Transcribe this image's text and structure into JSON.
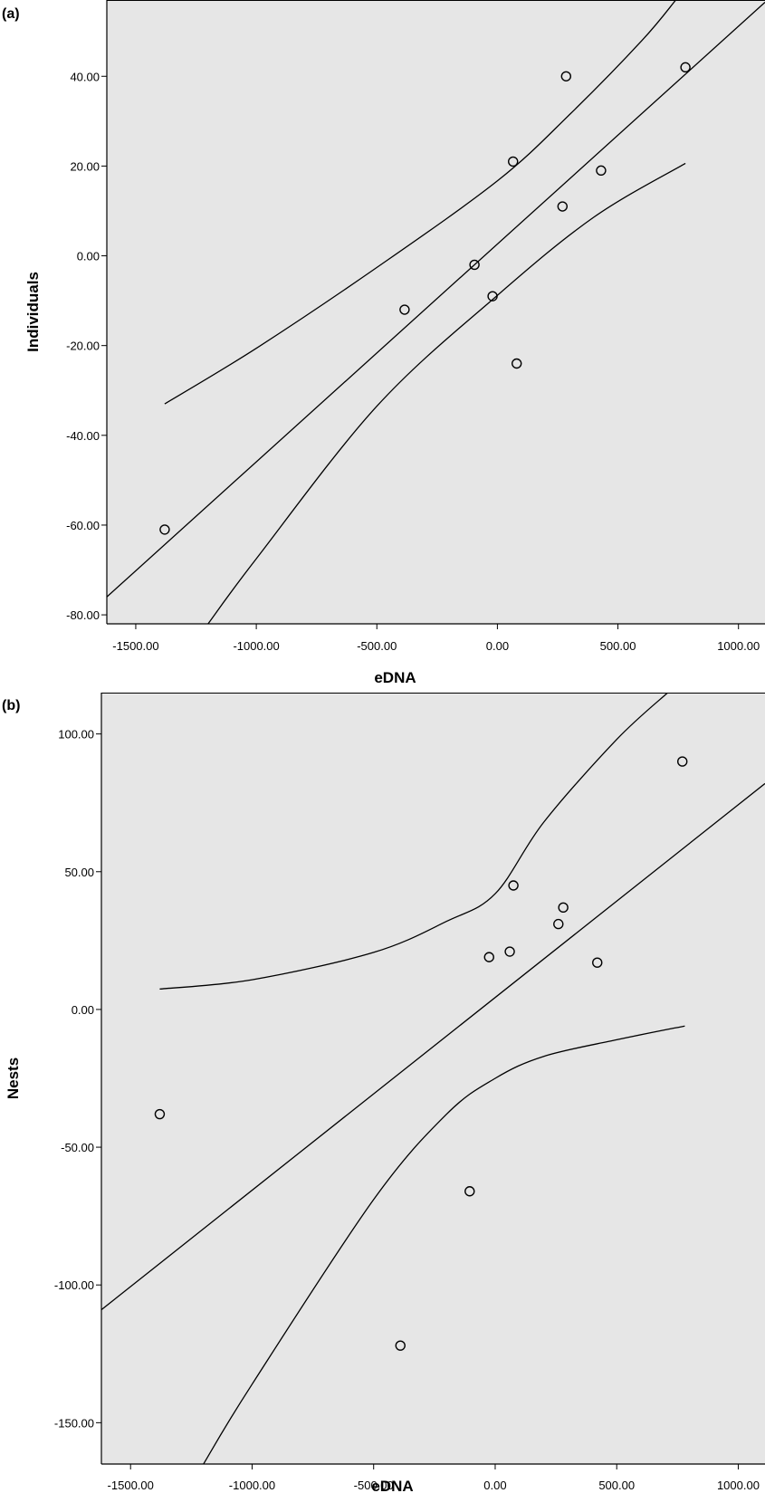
{
  "chart_data": [
    {
      "type": "scatter",
      "panel_label": "(a)",
      "xlabel": "eDNA",
      "ylabel": "Individuals",
      "xlim": [
        -1620,
        1110
      ],
      "ylim": [
        -82,
        57
      ],
      "xticks": [
        -1500,
        -1000,
        -500,
        0,
        500,
        1000
      ],
      "xtick_labels": [
        "-1500.00",
        "-1000.00",
        "-500.00",
        "0.00",
        "500.00",
        "1000.00"
      ],
      "yticks": [
        40,
        20,
        0,
        -20,
        -40,
        -60,
        -80
      ],
      "ytick_labels": [
        "40.00",
        "20.00",
        "0.00",
        "-20.00",
        "-40.00",
        "-60.00",
        "-80.00"
      ],
      "points": [
        {
          "x": -1380,
          "y": -61
        },
        {
          "x": -385,
          "y": -12
        },
        {
          "x": -95,
          "y": -2
        },
        {
          "x": -20,
          "y": -9
        },
        {
          "x": 65,
          "y": 21
        },
        {
          "x": 80,
          "y": -24
        },
        {
          "x": 270,
          "y": 11
        },
        {
          "x": 285,
          "y": 40
        },
        {
          "x": 430,
          "y": 19
        },
        {
          "x": 780,
          "y": 42
        }
      ],
      "fit_line": [
        [
          -1620,
          -76
        ],
        [
          1110,
          56.5
        ]
      ],
      "ci_upper": [
        [
          -1380,
          -33
        ],
        [
          -1000,
          -20.6
        ],
        [
          -500,
          -2.6
        ],
        [
          0,
          16.7
        ],
        [
          300,
          31.5
        ],
        [
          600,
          48
        ],
        [
          740,
          57
        ]
      ],
      "ci_lower": [
        [
          -1200,
          -82
        ],
        [
          -1000,
          -67.5
        ],
        [
          -500,
          -33.5
        ],
        [
          0,
          -8.8
        ],
        [
          400,
          8.6
        ],
        [
          780,
          20.6
        ]
      ],
      "grid": false
    },
    {
      "type": "scatter",
      "panel_label": "(b)",
      "xlabel": "eDNA",
      "ylabel": "Nests",
      "xlim": [
        -1620,
        1110
      ],
      "ylim": [
        -165,
        115
      ],
      "xticks": [
        -1500,
        -1000,
        -500,
        0,
        500,
        1000
      ],
      "xtick_labels": [
        "-1500.00",
        "-1000.00",
        "-500.00",
        "0.00",
        "500.00",
        "1000.00"
      ],
      "yticks": [
        100,
        50,
        0,
        -50,
        -100,
        -150
      ],
      "ytick_labels": [
        "100.00",
        "50.00",
        "0.00",
        "-50.00",
        "-100.00",
        "-150.00"
      ],
      "points": [
        {
          "x": -1380,
          "y": -38
        },
        {
          "x": -390,
          "y": -122
        },
        {
          "x": -105,
          "y": -66
        },
        {
          "x": -25,
          "y": 19
        },
        {
          "x": 60,
          "y": 21
        },
        {
          "x": 75,
          "y": 45
        },
        {
          "x": 260,
          "y": 31
        },
        {
          "x": 280,
          "y": 37
        },
        {
          "x": 420,
          "y": 17
        },
        {
          "x": 770,
          "y": 90
        }
      ],
      "fit_line": [
        [
          -1620,
          -109
        ],
        [
          1110,
          82
        ]
      ],
      "ci_upper": [
        [
          -1380,
          7.4
        ],
        [
          -1000,
          10.8
        ],
        [
          -500,
          20.7
        ],
        [
          -200,
          32
        ],
        [
          0,
          42
        ],
        [
          200,
          68
        ],
        [
          500,
          98
        ],
        [
          710,
          115
        ]
      ],
      "ci_lower": [
        [
          -1200,
          -165
        ],
        [
          -1000,
          -136
        ],
        [
          -500,
          -69
        ],
        [
          -200,
          -38
        ],
        [
          0,
          -25
        ],
        [
          200,
          -17
        ],
        [
          500,
          -11
        ],
        [
          780,
          -6
        ]
      ],
      "grid": false
    }
  ]
}
